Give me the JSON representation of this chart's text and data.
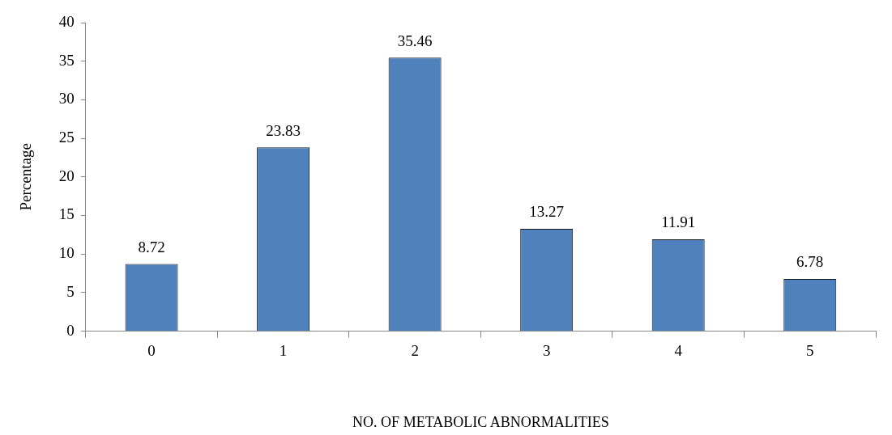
{
  "chart_data": {
    "type": "bar",
    "xlabel": "NO. OF METABOLIC ABNORMALITIES",
    "ylabel": "Percentage",
    "categories": [
      "0",
      "1",
      "2",
      "3",
      "4",
      "5"
    ],
    "values": [
      8.72,
      23.83,
      35.46,
      13.27,
      11.91,
      6.78
    ],
    "color": "#4f81bd",
    "ylim": [
      0,
      40
    ],
    "yticks": [
      0,
      5,
      10,
      15,
      20,
      25,
      30,
      35,
      40
    ],
    "grid": false,
    "legend": false,
    "data_labels": true
  }
}
